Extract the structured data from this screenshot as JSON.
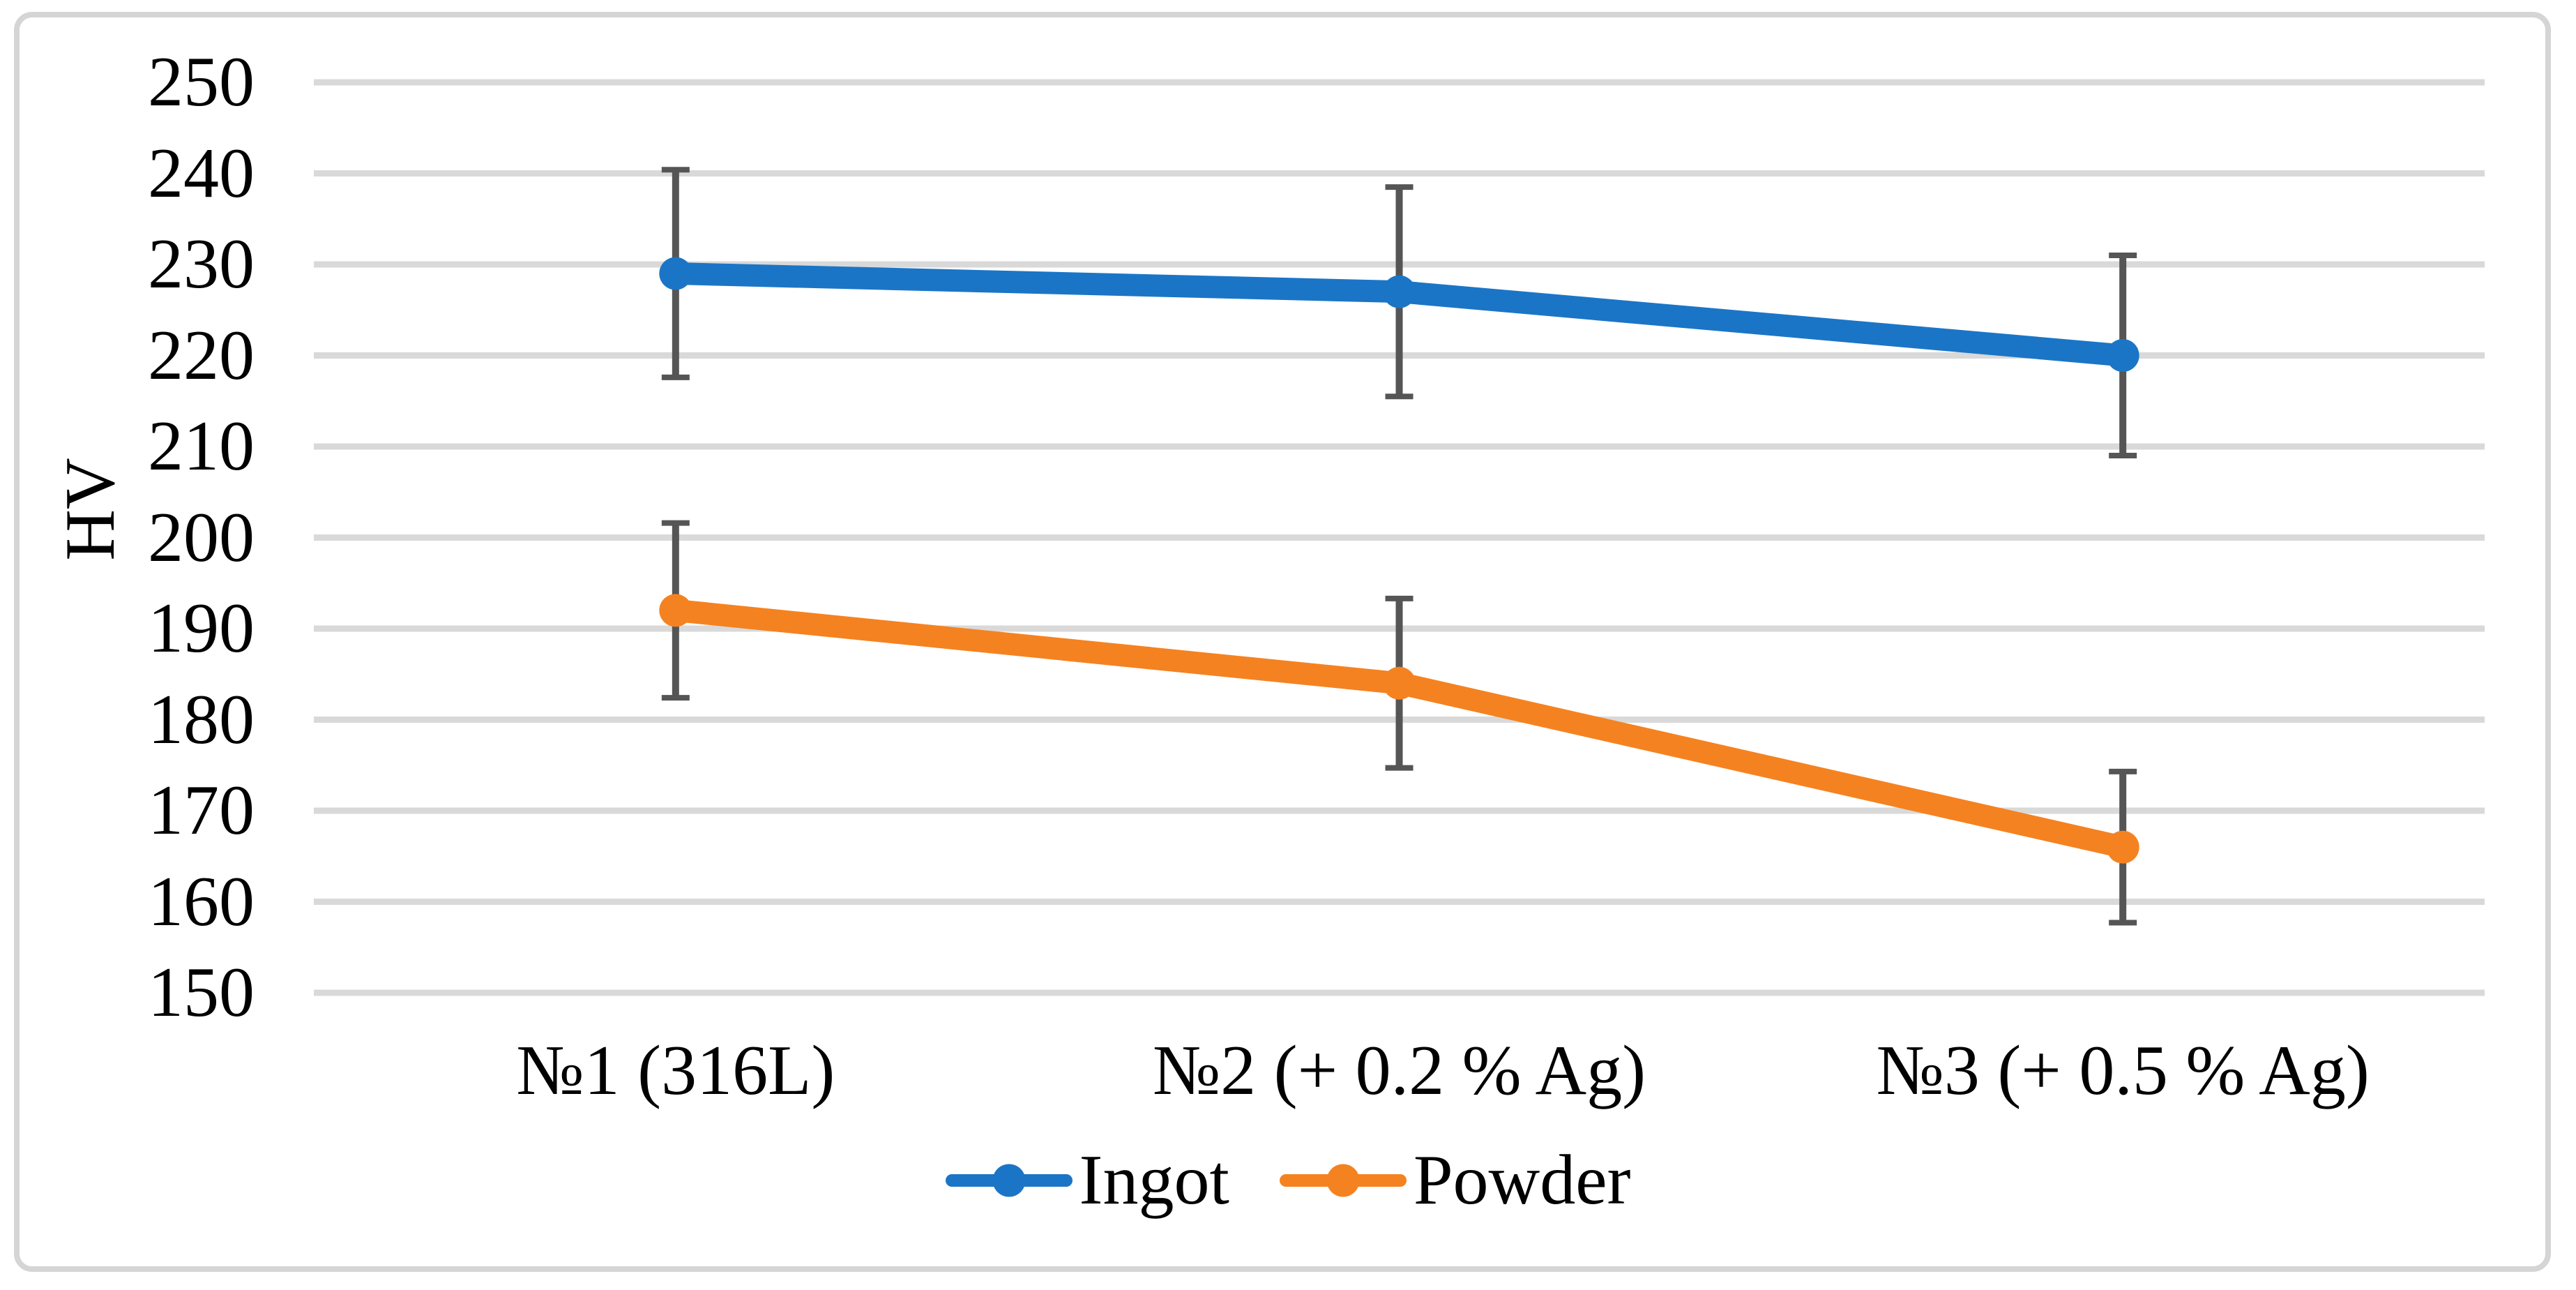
{
  "figure": {
    "background": "#FFFFFF",
    "border_color": "#D5D5D5"
  },
  "chart_data": {
    "type": "line",
    "title": "",
    "xlabel": "",
    "ylabel": "HV",
    "categories": [
      "№1 (316L)",
      "№2 (+ 0.2 % Ag)",
      "№3 (+ 0.5 % Ag)"
    ],
    "series": [
      {
        "name": "Ingot",
        "color": "#1B75C6",
        "values": [
          229,
          227,
          220
        ],
        "error_bars": [
          11.4,
          11.5,
          11.0
        ]
      },
      {
        "name": "Powder",
        "color": "#F58220",
        "values": [
          192,
          184,
          166
        ],
        "error_bars": [
          9.6,
          9.3,
          8.3
        ]
      }
    ],
    "ylim": [
      150,
      250
    ],
    "yticks": [
      250,
      240,
      230,
      220,
      210,
      200,
      190,
      180,
      170,
      160,
      150
    ],
    "grid": true,
    "gridline_color": "#D9D9D9",
    "error_bar_color": "#555555",
    "legend_position": "bottom",
    "marker": "circle"
  }
}
